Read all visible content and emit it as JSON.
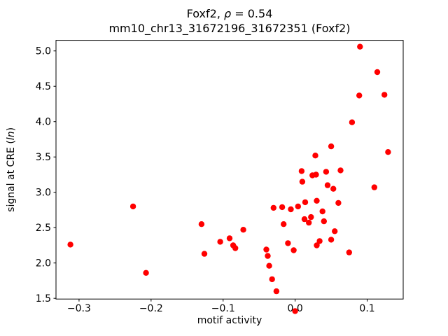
{
  "figure": {
    "title_prefix": "Foxf2, ",
    "title_rho": "ρ",
    "title_eq": " = 0.54",
    "subtitle": "mm10_chr13_31672196_31672351 (Foxf2)",
    "xlabel": "motif activity",
    "ylabel_prefix": "signal at CRE (",
    "ylabel_italic": "ln",
    "ylabel_suffix": ")"
  },
  "chart_data": {
    "type": "scatter",
    "title": "Foxf2, ρ = 0.54",
    "subtitle": "mm10_chr13_31672196_31672351 (Foxf2)",
    "xlabel": "motif activity",
    "ylabel": "signal at CRE (ln)",
    "legend": "none",
    "grid": false,
    "marker_color": "#ff0000",
    "marker_radius_px": 4.2,
    "xlim": [
      -0.332,
      0.15
    ],
    "ylim": [
      1.49,
      5.15
    ],
    "x_ticks": {
      "values": [
        -0.3,
        -0.2,
        -0.1,
        0.0,
        0.1
      ],
      "labels": [
        "−0.3",
        "−0.2",
        "−0.1",
        "0.0",
        "0.1"
      ]
    },
    "y_ticks": {
      "values": [
        1.5,
        2.0,
        2.5,
        3.0,
        3.5,
        4.0,
        4.5,
        5.0
      ],
      "labels": [
        "1.5",
        "2.0",
        "2.5",
        "3.0",
        "3.5",
        "4.0",
        "4.5",
        "5.0"
      ]
    },
    "points": [
      [
        -0.312,
        2.26
      ],
      [
        -0.225,
        2.8
      ],
      [
        -0.207,
        1.86
      ],
      [
        -0.13,
        2.55
      ],
      [
        -0.126,
        2.13
      ],
      [
        -0.104,
        2.3
      ],
      [
        -0.091,
        2.35
      ],
      [
        -0.086,
        2.25
      ],
      [
        -0.083,
        2.21
      ],
      [
        -0.072,
        2.47
      ],
      [
        -0.04,
        2.19
      ],
      [
        -0.038,
        2.1
      ],
      [
        -0.036,
        1.96
      ],
      [
        -0.032,
        1.77
      ],
      [
        -0.026,
        1.6
      ],
      [
        -0.03,
        2.78
      ],
      [
        -0.018,
        2.79
      ],
      [
        -0.016,
        2.55
      ],
      [
        -0.01,
        2.28
      ],
      [
        -0.006,
        2.76
      ],
      [
        0.0,
        1.32
      ],
      [
        -0.002,
        2.18
      ],
      [
        0.004,
        2.8
      ],
      [
        0.009,
        3.3
      ],
      [
        0.01,
        3.15
      ],
      [
        0.013,
        2.62
      ],
      [
        0.014,
        2.86
      ],
      [
        0.019,
        2.57
      ],
      [
        0.022,
        2.65
      ],
      [
        0.024,
        3.24
      ],
      [
        0.028,
        3.52
      ],
      [
        0.029,
        3.25
      ],
      [
        0.03,
        2.88
      ],
      [
        0.03,
        2.25
      ],
      [
        0.034,
        2.31
      ],
      [
        0.038,
        2.73
      ],
      [
        0.04,
        2.59
      ],
      [
        0.043,
        3.29
      ],
      [
        0.045,
        3.1
      ],
      [
        0.05,
        3.65
      ],
      [
        0.05,
        2.33
      ],
      [
        0.053,
        3.05
      ],
      [
        0.055,
        2.45
      ],
      [
        0.06,
        2.85
      ],
      [
        0.063,
        3.31
      ],
      [
        0.075,
        2.15
      ],
      [
        0.079,
        3.99
      ],
      [
        0.089,
        4.37
      ],
      [
        0.09,
        5.06
      ],
      [
        0.11,
        3.07
      ],
      [
        0.114,
        4.7
      ],
      [
        0.124,
        4.38
      ],
      [
        0.129,
        3.57
      ]
    ]
  }
}
